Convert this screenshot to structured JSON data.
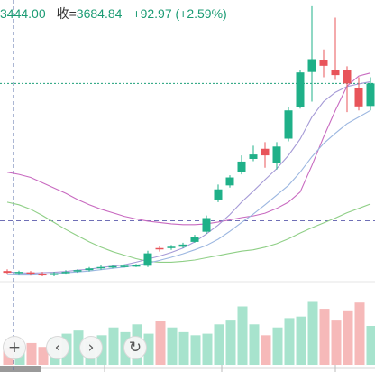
{
  "header": {
    "open_text": "3444.00",
    "close_label": "收=",
    "close_value": "3684.84",
    "change_text": "+92.97 (+2.59%)"
  },
  "controls": [
    {
      "name": "zoom-in-button",
      "icon": "plus-icon",
      "glyph": "+"
    },
    {
      "name": "scroll-left-button",
      "icon": "chevron-left-icon",
      "glyph": "‹"
    },
    {
      "name": "scroll-right-button",
      "icon": "chevron-right-icon",
      "glyph": "›"
    },
    {
      "name": "reset-button",
      "icon": "refresh-icon",
      "glyph": "↻"
    }
  ],
  "colors": {
    "up": "#1fb088",
    "down": "#e8545a",
    "vol_up": "#a7e3cd",
    "vol_down": "#f6b9b9",
    "ma_pink": "#c86ac0",
    "ma_purple": "#a59ad6",
    "ma_green": "#8fcf86",
    "ma_blue": "#9bb6e0",
    "price_line": "#1fa07a",
    "dash": "#6f6fb6"
  },
  "chart_data": {
    "type": "candlestick",
    "price_range": [
      3090,
      3720
    ],
    "candles": [
      {
        "o": 3106,
        "c": 3102,
        "h": 3110,
        "l": 3098
      },
      {
        "o": 3101,
        "c": 3104,
        "h": 3107,
        "l": 3097
      },
      {
        "o": 3103,
        "c": 3101,
        "h": 3106,
        "l": 3096
      },
      {
        "o": 3100,
        "c": 3096,
        "h": 3104,
        "l": 3094
      },
      {
        "o": 3097,
        "c": 3101,
        "h": 3104,
        "l": 3094
      },
      {
        "o": 3101,
        "c": 3104,
        "h": 3108,
        "l": 3098
      },
      {
        "o": 3105,
        "c": 3108,
        "h": 3110,
        "l": 3102
      },
      {
        "o": 3108,
        "c": 3112,
        "h": 3115,
        "l": 3105
      },
      {
        "o": 3112,
        "c": 3115,
        "h": 3119,
        "l": 3109
      },
      {
        "o": 3115,
        "c": 3117,
        "h": 3120,
        "l": 3112
      },
      {
        "o": 3117,
        "c": 3118,
        "h": 3121,
        "l": 3114
      },
      {
        "o": 3117,
        "c": 3119,
        "h": 3122,
        "l": 3115
      },
      {
        "o": 3118,
        "c": 3146,
        "h": 3152,
        "l": 3115
      },
      {
        "o": 3158,
        "c": 3156,
        "h": 3162,
        "l": 3150
      },
      {
        "o": 3158,
        "c": 3161,
        "h": 3165,
        "l": 3154
      },
      {
        "o": 3161,
        "c": 3166,
        "h": 3170,
        "l": 3158
      },
      {
        "o": 3172,
        "c": 3184,
        "h": 3188,
        "l": 3170
      },
      {
        "o": 3195,
        "c": 3226,
        "h": 3232,
        "l": 3190
      },
      {
        "o": 3268,
        "c": 3291,
        "h": 3302,
        "l": 3262
      },
      {
        "o": 3300,
        "c": 3318,
        "h": 3323,
        "l": 3295
      },
      {
        "o": 3330,
        "c": 3354,
        "h": 3368,
        "l": 3325
      },
      {
        "o": 3360,
        "c": 3370,
        "h": 3390,
        "l": 3355
      },
      {
        "o": 3383,
        "c": 3368,
        "h": 3398,
        "l": 3340
      },
      {
        "o": 3350,
        "c": 3388,
        "h": 3398,
        "l": 3336
      },
      {
        "o": 3406,
        "c": 3470,
        "h": 3478,
        "l": 3400
      },
      {
        "o": 3478,
        "c": 3556,
        "h": 3562,
        "l": 3474
      },
      {
        "o": 3557,
        "c": 3586,
        "h": 3706,
        "l": 3490
      },
      {
        "o": 3585,
        "c": 3571,
        "h": 3608,
        "l": 3545
      },
      {
        "o": 3561,
        "c": 3550,
        "h": 3680,
        "l": 3539
      },
      {
        "o": 3562,
        "c": 3531,
        "h": 3570,
        "l": 3466
      },
      {
        "o": 3521,
        "c": 3479,
        "h": 3545,
        "l": 3470
      },
      {
        "o": 3480,
        "c": 3531,
        "h": 3545,
        "l": 3470
      }
    ],
    "volumes": [
      22,
      25,
      28,
      23,
      35,
      40,
      44,
      30,
      38,
      48,
      42,
      52,
      40,
      56,
      48,
      42,
      38,
      40,
      52,
      58,
      75,
      52,
      38,
      48,
      60,
      62,
      82,
      72,
      58,
      70,
      80,
      50
    ],
    "vol_range": [
      0,
      100
    ],
    "ma_pink": [
      3330,
      3325,
      3318,
      3306,
      3294,
      3282,
      3268,
      3256,
      3246,
      3238,
      3230,
      3224,
      3219,
      3216,
      3213,
      3211,
      3211,
      3213,
      3217,
      3222,
      3227,
      3231,
      3237,
      3248,
      3262,
      3285,
      3345,
      3410,
      3470,
      3525,
      3548,
      3555
    ],
    "ma_purple": [
      3104,
      3102,
      3101,
      3102,
      3103,
      3105,
      3108,
      3110,
      3114,
      3117,
      3120,
      3126,
      3133,
      3140,
      3148,
      3158,
      3172,
      3190,
      3210,
      3234,
      3262,
      3287,
      3313,
      3338,
      3368,
      3405,
      3455,
      3490,
      3511,
      3524,
      3530,
      3535
    ],
    "ma_blue": [
      3098,
      3097,
      3097,
      3098,
      3100,
      3102,
      3104,
      3106,
      3109,
      3112,
      3115,
      3119,
      3124,
      3130,
      3137,
      3145,
      3154,
      3164,
      3178,
      3196,
      3216,
      3235,
      3256,
      3278,
      3300,
      3330,
      3365,
      3395,
      3418,
      3440,
      3455,
      3470
    ],
    "ma_green": [
      3262,
      3256,
      3246,
      3232,
      3216,
      3200,
      3186,
      3172,
      3160,
      3150,
      3142,
      3134,
      3128,
      3126,
      3126,
      3128,
      3131,
      3136,
      3141,
      3146,
      3151,
      3154,
      3160,
      3168,
      3179,
      3192,
      3204,
      3215,
      3226,
      3238,
      3248,
      3258
    ],
    "current_price": 3531,
    "mid_level": 3220
  }
}
